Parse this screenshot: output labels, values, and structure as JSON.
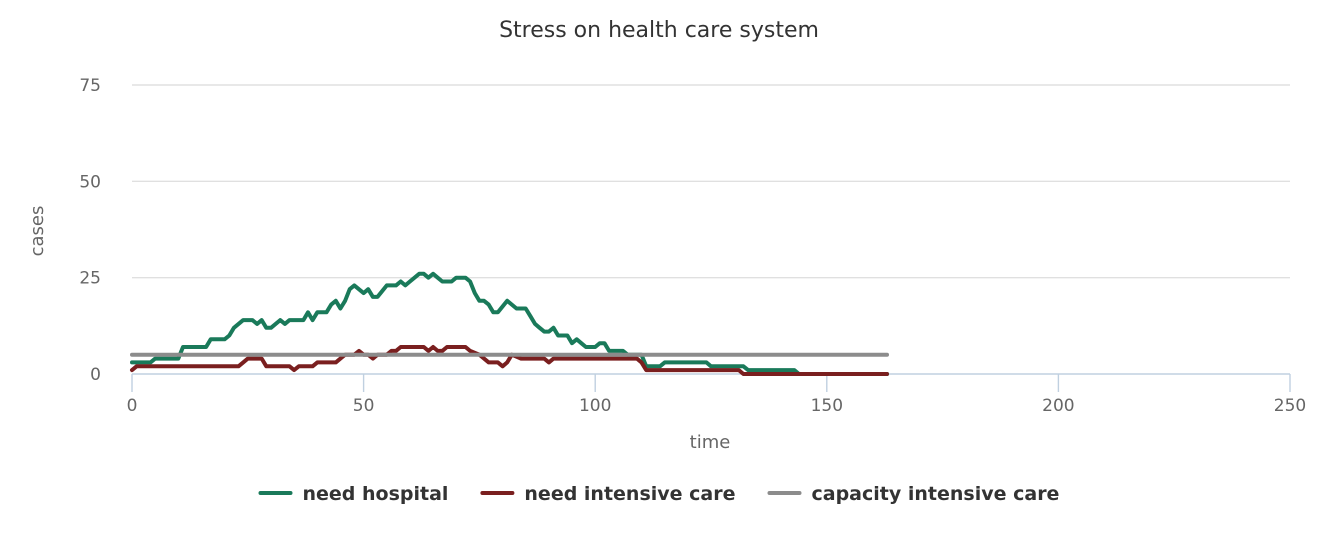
{
  "chart_data": {
    "type": "line",
    "title": "Stress on health care system",
    "xlabel": "time",
    "ylabel": "cases",
    "xlim": [
      0,
      250
    ],
    "ylim": [
      0,
      75
    ],
    "x_ticks": [
      0,
      50,
      100,
      150,
      200,
      250
    ],
    "y_ticks": [
      0,
      25,
      50,
      75
    ],
    "grid": "horizontal",
    "legend_position": "bottom-center",
    "series": [
      {
        "name": "need hospital",
        "color": "#1a7a5a",
        "points": [
          [
            0,
            3
          ],
          [
            4,
            3
          ],
          [
            5,
            4
          ],
          [
            10,
            4
          ],
          [
            11,
            7
          ],
          [
            16,
            7
          ],
          [
            17,
            9
          ],
          [
            20,
            9
          ],
          [
            21,
            10
          ],
          [
            22,
            12
          ],
          [
            24,
            14
          ],
          [
            26,
            14
          ],
          [
            27,
            13
          ],
          [
            28,
            14
          ],
          [
            29,
            12
          ],
          [
            30,
            12
          ],
          [
            32,
            14
          ],
          [
            33,
            13
          ],
          [
            34,
            14
          ],
          [
            37,
            14
          ],
          [
            38,
            16
          ],
          [
            39,
            14
          ],
          [
            40,
            16
          ],
          [
            42,
            16
          ],
          [
            43,
            18
          ],
          [
            44,
            19
          ],
          [
            45,
            17
          ],
          [
            46,
            19
          ],
          [
            47,
            22
          ],
          [
            48,
            23
          ],
          [
            50,
            21
          ],
          [
            51,
            22
          ],
          [
            52,
            20
          ],
          [
            53,
            20
          ],
          [
            55,
            23
          ],
          [
            57,
            23
          ],
          [
            58,
            24
          ],
          [
            59,
            23
          ],
          [
            60,
            24
          ],
          [
            62,
            26
          ],
          [
            63,
            26
          ],
          [
            64,
            25
          ],
          [
            65,
            26
          ],
          [
            66,
            25
          ],
          [
            67,
            24
          ],
          [
            69,
            24
          ],
          [
            70,
            25
          ],
          [
            72,
            25
          ],
          [
            73,
            24
          ],
          [
            74,
            21
          ],
          [
            75,
            19
          ],
          [
            76,
            19
          ],
          [
            77,
            18
          ],
          [
            78,
            16
          ],
          [
            79,
            16
          ],
          [
            81,
            19
          ],
          [
            83,
            17
          ],
          [
            85,
            17
          ],
          [
            86,
            15
          ],
          [
            87,
            13
          ],
          [
            88,
            12
          ],
          [
            89,
            11
          ],
          [
            90,
            11
          ],
          [
            91,
            12
          ],
          [
            92,
            10
          ],
          [
            93,
            10
          ],
          [
            94,
            10
          ],
          [
            95,
            8
          ],
          [
            96,
            9
          ],
          [
            97,
            8
          ],
          [
            98,
            7
          ],
          [
            100,
            7
          ],
          [
            101,
            8
          ],
          [
            102,
            8
          ],
          [
            103,
            6
          ],
          [
            106,
            6
          ],
          [
            107,
            5
          ],
          [
            110,
            5
          ],
          [
            111,
            2
          ],
          [
            114,
            2
          ],
          [
            115,
            3
          ],
          [
            124,
            3
          ],
          [
            125,
            2
          ],
          [
            132,
            2
          ],
          [
            133,
            1
          ],
          [
            143,
            1
          ],
          [
            144,
            0
          ],
          [
            163,
            0
          ]
        ]
      },
      {
        "name": "need intensive care",
        "color": "#7a1f1f",
        "points": [
          [
            0,
            1
          ],
          [
            1,
            2
          ],
          [
            23,
            2
          ],
          [
            24,
            3
          ],
          [
            25,
            4
          ],
          [
            28,
            4
          ],
          [
            29,
            2
          ],
          [
            34,
            2
          ],
          [
            35,
            1
          ],
          [
            36,
            2
          ],
          [
            39,
            2
          ],
          [
            40,
            3
          ],
          [
            44,
            3
          ],
          [
            45,
            4
          ],
          [
            46,
            5
          ],
          [
            48,
            5
          ],
          [
            49,
            6
          ],
          [
            50,
            5
          ],
          [
            51,
            5
          ],
          [
            52,
            4
          ],
          [
            53,
            5
          ],
          [
            55,
            5
          ],
          [
            56,
            6
          ],
          [
            57,
            6
          ],
          [
            58,
            7
          ],
          [
            63,
            7
          ],
          [
            64,
            6
          ],
          [
            65,
            7
          ],
          [
            66,
            6
          ],
          [
            67,
            6
          ],
          [
            68,
            7
          ],
          [
            72,
            7
          ],
          [
            73,
            6
          ],
          [
            75,
            5
          ],
          [
            77,
            3
          ],
          [
            79,
            3
          ],
          [
            80,
            2
          ],
          [
            81,
            3
          ],
          [
            82,
            5
          ],
          [
            84,
            4
          ],
          [
            89,
            4
          ],
          [
            90,
            3
          ],
          [
            91,
            4
          ],
          [
            109,
            4
          ],
          [
            110,
            3
          ],
          [
            111,
            1
          ],
          [
            131,
            1
          ],
          [
            132,
            0
          ],
          [
            163,
            0
          ]
        ]
      },
      {
        "name": "capacity intensive care",
        "color": "#8c8c8c",
        "points": [
          [
            0,
            5
          ],
          [
            163,
            5
          ]
        ]
      }
    ]
  }
}
